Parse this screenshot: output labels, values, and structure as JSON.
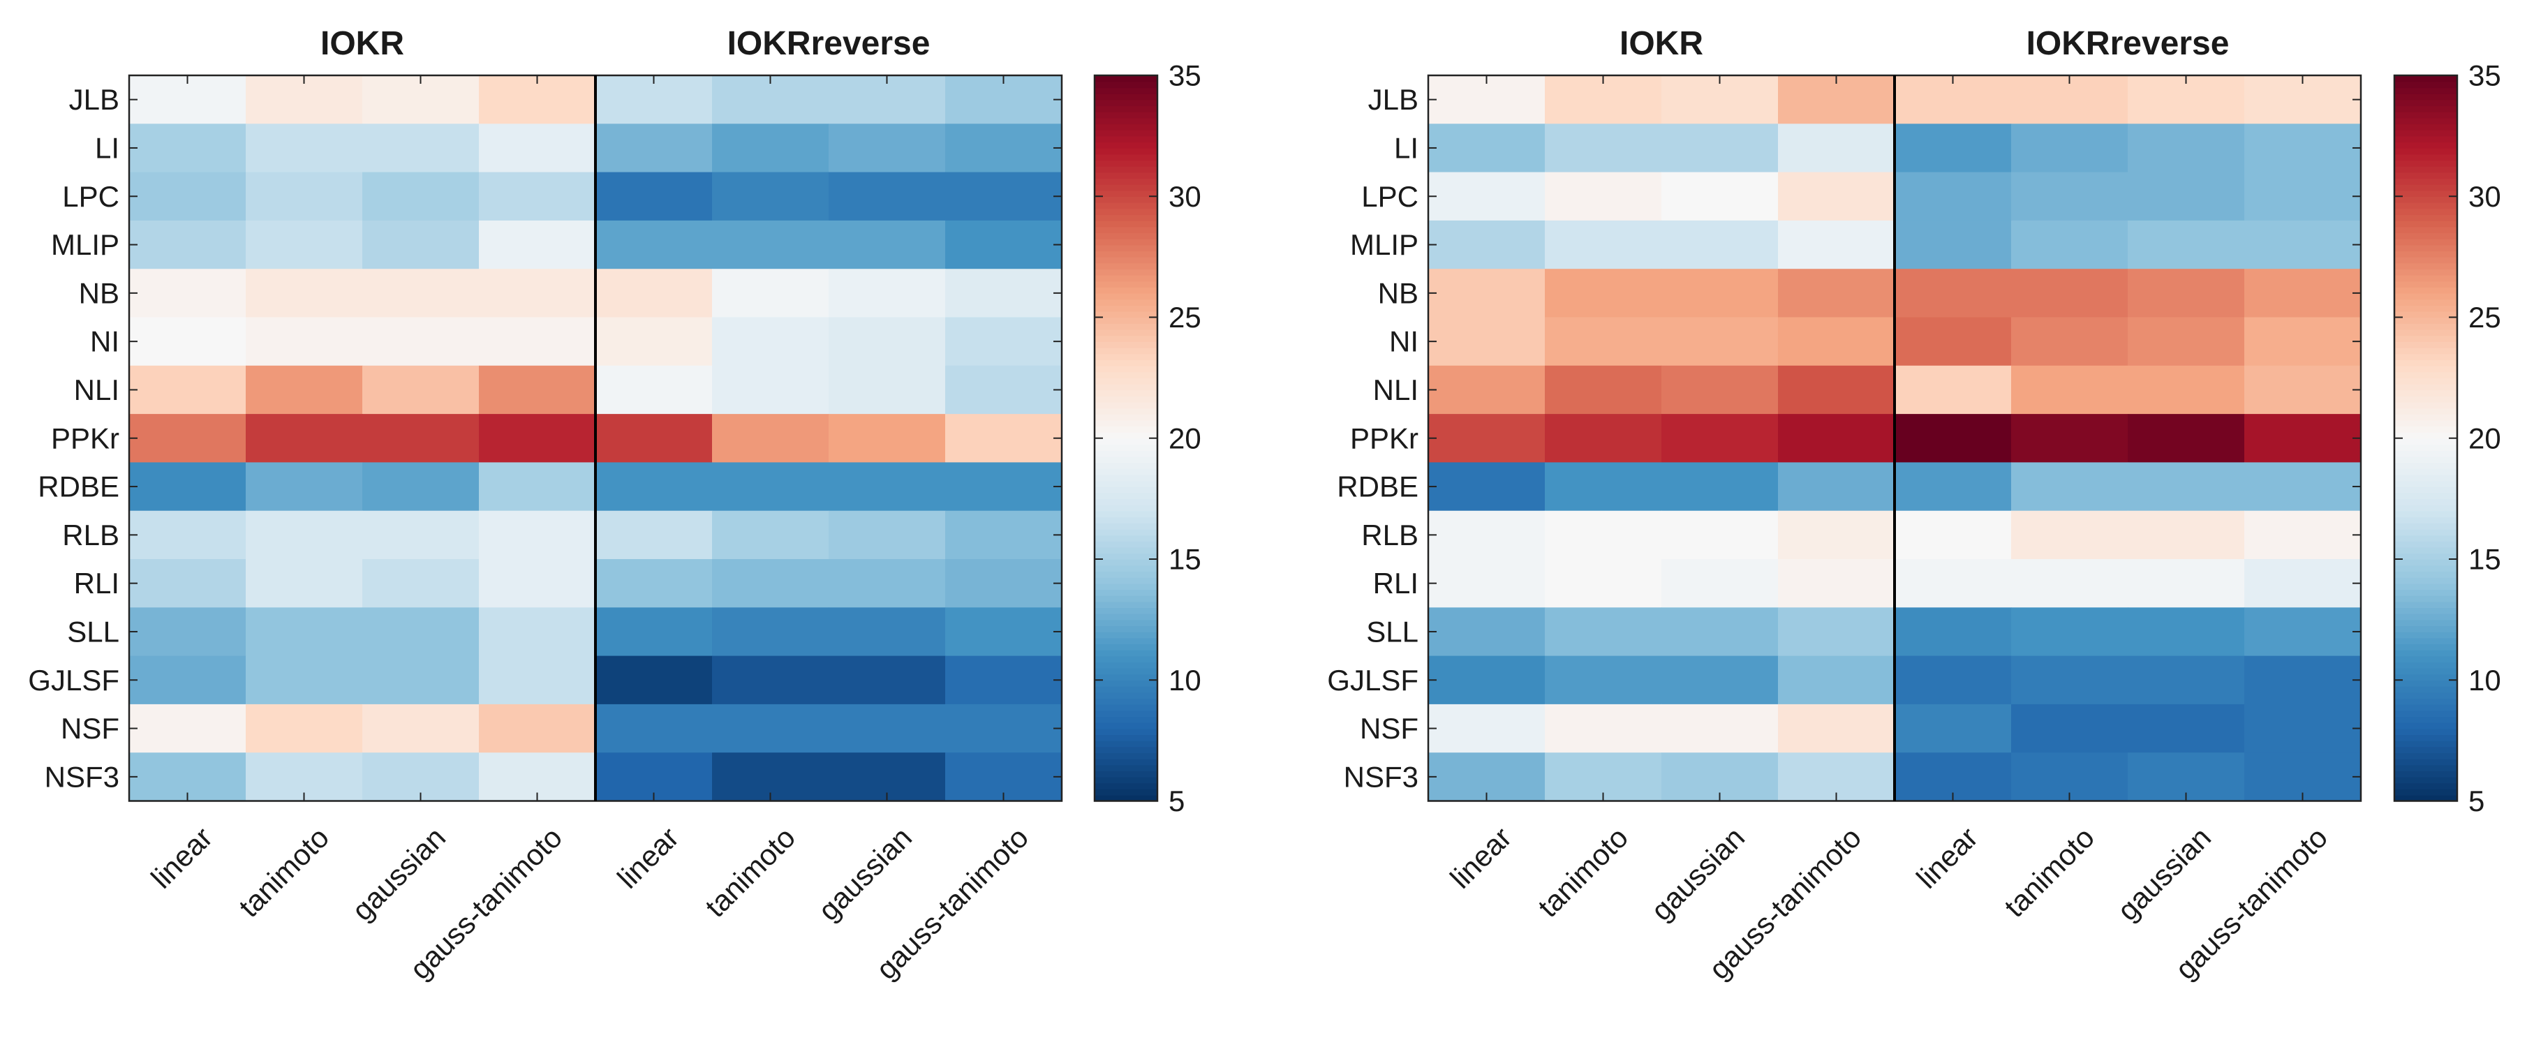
{
  "chart_data": [
    {
      "type": "heatmap",
      "title_left": "IOKR",
      "title_right": "IOKRreverse",
      "rows": [
        "JLB",
        "LI",
        "LPC",
        "MLIP",
        "NB",
        "NI",
        "NLI",
        "PPKr",
        "RDBE",
        "RLB",
        "RLI",
        "SLL",
        "GJLSF",
        "NSF",
        "NSF3"
      ],
      "columns": [
        "linear",
        "tanimoto",
        "gaussian",
        "gauss-tanimoto",
        "linear",
        "tanimoto",
        "gaussian",
        "gauss-tanimoto"
      ],
      "values": [
        [
          19.5,
          21.5,
          21.0,
          23.0,
          16.5,
          15.5,
          15.5,
          14.5
        ],
        [
          15.0,
          16.5,
          16.5,
          18.5,
          13.0,
          12.0,
          12.5,
          12.0
        ],
        [
          14.5,
          16.0,
          15.0,
          16.0,
          9.0,
          10.0,
          9.5,
          9.5
        ],
        [
          15.5,
          16.5,
          15.5,
          19.0,
          12.0,
          12.0,
          12.0,
          11.0
        ],
        [
          20.5,
          21.5,
          21.5,
          21.5,
          22.0,
          19.5,
          19.0,
          18.0
        ],
        [
          20.0,
          20.5,
          20.5,
          20.5,
          21.0,
          18.5,
          18.0,
          16.5
        ],
        [
          23.5,
          26.5,
          24.5,
          27.0,
          19.5,
          18.5,
          18.0,
          16.0
        ],
        [
          28.0,
          30.5,
          30.5,
          31.5,
          30.5,
          26.5,
          26.0,
          23.5
        ],
        [
          10.5,
          12.5,
          12.0,
          15.0,
          11.0,
          11.0,
          11.0,
          11.0
        ],
        [
          16.5,
          17.5,
          17.5,
          18.5,
          16.5,
          15.0,
          14.5,
          13.5
        ],
        [
          15.5,
          17.5,
          16.5,
          18.5,
          14.0,
          13.5,
          13.5,
          13.0
        ],
        [
          13.0,
          14.0,
          14.0,
          16.5,
          10.5,
          10.0,
          10.0,
          11.0
        ],
        [
          12.5,
          14.0,
          14.0,
          16.5,
          6.0,
          7.0,
          7.0,
          8.5
        ],
        [
          20.5,
          23.0,
          22.0,
          24.0,
          9.5,
          9.5,
          9.5,
          9.5
        ],
        [
          14.0,
          16.5,
          16.0,
          18.0,
          8.0,
          6.5,
          6.5,
          8.5
        ]
      ],
      "colorbar": {
        "min": 5,
        "max": 35,
        "ticks": [
          "5",
          "10",
          "15",
          "20",
          "25",
          "30",
          "35"
        ]
      }
    },
    {
      "type": "heatmap",
      "title_left": "IOKR",
      "title_right": "IOKRreverse",
      "rows": [
        "JLB",
        "LI",
        "LPC",
        "MLIP",
        "NB",
        "NI",
        "NLI",
        "PPKr",
        "RDBE",
        "RLB",
        "RLI",
        "SLL",
        "GJLSF",
        "NSF",
        "NSF3"
      ],
      "columns": [
        "linear",
        "tanimoto",
        "gaussian",
        "gauss-tanimoto",
        "linear",
        "tanimoto",
        "gaussian",
        "gauss-tanimoto"
      ],
      "values": [
        [
          20.5,
          23.0,
          22.5,
          25.0,
          23.5,
          23.5,
          23.0,
          22.5
        ],
        [
          14.0,
          15.5,
          15.5,
          18.0,
          11.5,
          12.5,
          13.0,
          13.5
        ],
        [
          19.0,
          20.5,
          20.0,
          22.0,
          12.5,
          13.0,
          13.0,
          13.5
        ],
        [
          15.5,
          17.0,
          17.0,
          19.0,
          12.5,
          13.5,
          14.0,
          14.0
        ],
        [
          24.0,
          26.0,
          26.0,
          27.0,
          28.0,
          28.0,
          27.5,
          26.5
        ],
        [
          24.0,
          25.5,
          25.5,
          26.0,
          28.5,
          27.5,
          27.0,
          25.5
        ],
        [
          26.5,
          28.5,
          28.0,
          29.5,
          23.5,
          26.0,
          26.0,
          25.0
        ],
        [
          30.0,
          31.0,
          31.5,
          32.5,
          35.0,
          34.0,
          34.5,
          32.5
        ],
        [
          9.0,
          11.0,
          11.0,
          12.5,
          11.5,
          13.5,
          13.5,
          13.5
        ],
        [
          19.5,
          20.0,
          20.0,
          21.0,
          20.0,
          21.5,
          21.5,
          20.5
        ],
        [
          19.5,
          20.0,
          19.5,
          20.5,
          19.5,
          19.5,
          19.5,
          18.5
        ],
        [
          12.5,
          13.5,
          13.5,
          14.5,
          10.5,
          11.0,
          11.0,
          11.5
        ],
        [
          10.5,
          11.5,
          11.5,
          13.5,
          9.0,
          9.5,
          9.5,
          9.0
        ],
        [
          19.0,
          20.5,
          20.5,
          22.0,
          10.0,
          8.5,
          8.5,
          9.0
        ],
        [
          13.0,
          15.0,
          14.5,
          16.0,
          8.5,
          9.0,
          9.5,
          9.0
        ]
      ],
      "colorbar": {
        "min": 5,
        "max": 35,
        "ticks": [
          "5",
          "10",
          "15",
          "20",
          "25",
          "30",
          "35"
        ]
      }
    }
  ],
  "colormap": [
    "#053061",
    "#2166ac",
    "#4393c3",
    "#92c5de",
    "#d1e5f0",
    "#f7f7f7",
    "#fddbc7",
    "#f4a582",
    "#d6604d",
    "#b2182b",
    "#67001f"
  ]
}
